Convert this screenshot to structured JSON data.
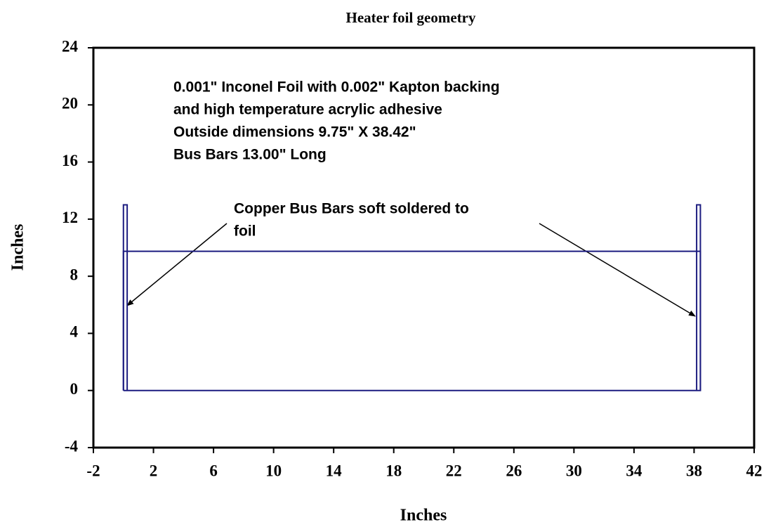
{
  "chart_data": {
    "type": "line",
    "title": "Heater foil geometry",
    "xlabel": "Inches",
    "ylabel": "Inches",
    "xlim": [
      -2,
      42
    ],
    "xticks": [
      -2,
      2,
      6,
      10,
      14,
      18,
      22,
      26,
      30,
      34,
      38,
      42
    ],
    "ylim": [
      -4,
      24
    ],
    "yticks": [
      -4,
      0,
      4,
      8,
      12,
      16,
      20,
      24
    ],
    "grid": false,
    "series": [
      {
        "color": "#1c1c80",
        "x": [
          0,
          38.42,
          38.42,
          0,
          0
        ],
        "values": [
          0,
          0,
          9.75,
          9.75,
          0
        ]
      },
      {
        "color": "#1c1c80",
        "x": [
          0,
          0,
          0.25,
          0.25
        ],
        "values": [
          0,
          13,
          13,
          0
        ]
      },
      {
        "color": "#1c1c80",
        "x": [
          38.17,
          38.17,
          38.42,
          38.42
        ],
        "values": [
          0,
          13,
          13,
          0
        ]
      }
    ],
    "annotations": [
      {
        "lines": [
          "0.001\" Inconel Foil with 0.002\" Kapton backing",
          "and high temperature acrylic adhesive",
          "Outside dimensions 9.75\" X 38.42\"",
          "Bus Bars 13.00\" Long"
        ]
      },
      {
        "lines": [
          "Copper Bus Bars soft soldered to",
          "foil"
        ]
      }
    ]
  }
}
